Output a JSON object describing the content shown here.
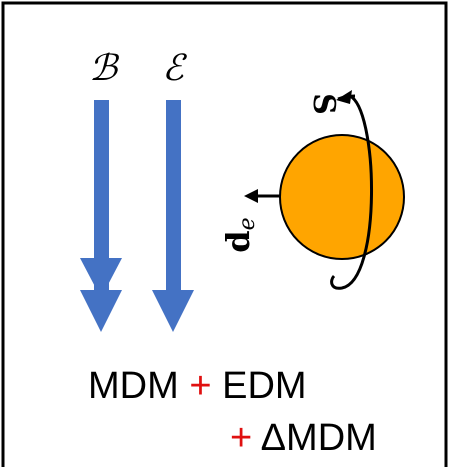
{
  "fields": {
    "label_b": "ℬ",
    "label_e": "ℰ",
    "spin": "S",
    "dipole": "d",
    "dipole_sub": "e"
  },
  "equation": {
    "line1": [
      "MDM",
      "+",
      "EDM"
    ],
    "line2": [
      "+",
      "ΔMDM"
    ]
  }
}
